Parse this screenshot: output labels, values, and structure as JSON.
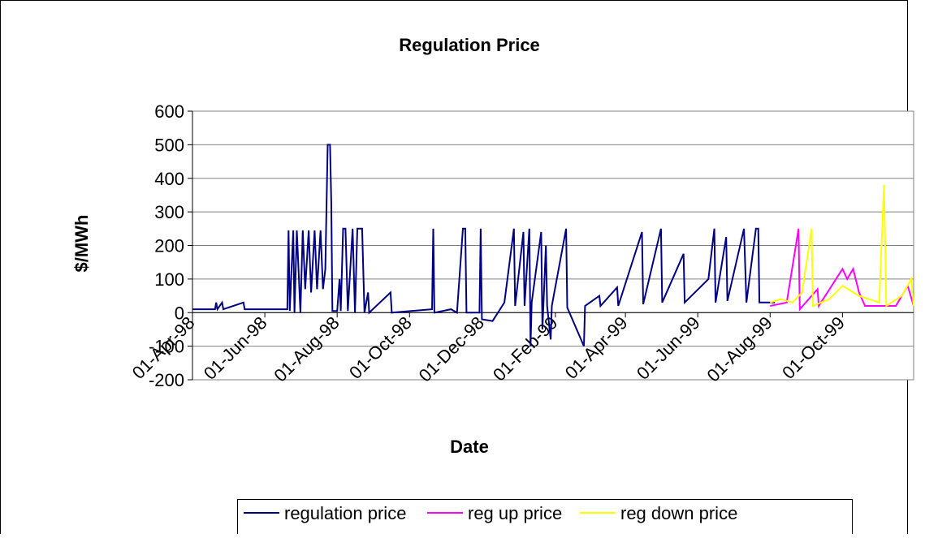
{
  "chart_data": {
    "type": "line",
    "title": "Regulation Price",
    "x_label": "Date",
    "y_label": "$/MWh",
    "xlim": [
      "1998-04-01",
      "1999-11-30"
    ],
    "xticks": [
      {
        "value": "1998-04-01",
        "label": "01-Apr-98"
      },
      {
        "value": "1998-06-01",
        "label": "01-Jun-98"
      },
      {
        "value": "1998-08-01",
        "label": "01-Aug-98"
      },
      {
        "value": "1998-10-01",
        "label": "01-Oct-98"
      },
      {
        "value": "1998-12-01",
        "label": "01-Dec-98"
      },
      {
        "value": "1999-02-01",
        "label": "01-Feb-99"
      },
      {
        "value": "1999-04-01",
        "label": "01-Apr-99"
      },
      {
        "value": "1999-06-01",
        "label": "01-Jun-99"
      },
      {
        "value": "1999-08-01",
        "label": "01-Aug-99"
      },
      {
        "value": "1999-10-01",
        "label": "01-Oct-99"
      }
    ],
    "ylim": [
      -200,
      600
    ],
    "yticks": [
      -200,
      -100,
      0,
      100,
      200,
      300,
      400,
      500,
      600
    ],
    "grid": true,
    "legend": "bottom",
    "series": [
      {
        "name": "regulation price",
        "color": "#000080",
        "x": [
          "1998-04-01",
          "1998-04-20",
          "1998-04-21",
          "1998-04-22",
          "1998-04-26",
          "1998-04-27",
          "1998-05-14",
          "1998-05-15",
          "1998-06-20",
          "1998-06-21",
          "1998-06-22",
          "1998-06-25",
          "1998-06-26",
          "1998-06-28",
          "1998-07-01",
          "1998-07-03",
          "1998-07-05",
          "1998-07-08",
          "1998-07-10",
          "1998-07-13",
          "1998-07-15",
          "1998-07-18",
          "1998-07-20",
          "1998-07-22",
          "1998-07-24",
          "1998-07-26",
          "1998-07-27",
          "1998-07-28",
          "1998-08-01",
          "1998-08-03",
          "1998-08-04",
          "1998-08-06",
          "1998-08-08",
          "1998-08-10",
          "1998-08-14",
          "1998-08-16",
          "1998-08-18",
          "1998-08-22",
          "1998-08-24",
          "1998-08-27",
          "1998-08-28",
          "1998-09-15",
          "1998-09-16",
          "1998-10-20",
          "1998-10-21",
          "1998-10-22",
          "1998-11-05",
          "1998-11-10",
          "1998-11-15",
          "1998-11-17",
          "1998-11-18",
          "1998-11-29",
          "1998-11-30",
          "1998-12-01",
          "1998-12-10",
          "1998-12-20",
          "1998-12-28",
          "1998-12-29",
          "1999-01-05",
          "1999-01-06",
          "1999-01-10",
          "1999-01-11",
          "1999-01-12",
          "1999-01-20",
          "1999-01-21",
          "1999-01-24",
          "1999-01-25",
          "1999-01-28",
          "1999-01-29",
          "1999-02-10",
          "1999-02-11",
          "1999-02-25",
          "1999-02-26",
          "1999-03-10",
          "1999-03-11",
          "1999-03-25",
          "1999-03-26",
          "1999-04-15",
          "1999-04-16",
          "1999-05-01",
          "1999-05-02",
          "1999-05-20",
          "1999-05-21",
          "1999-06-10",
          "1999-06-15",
          "1999-06-16",
          "1999-06-25",
          "1999-06-26",
          "1999-07-10",
          "1999-07-12",
          "1999-07-20",
          "1999-07-22",
          "1999-07-23",
          "1999-08-05"
        ],
        "values": [
          10,
          10,
          30,
          10,
          30,
          10,
          30,
          10,
          10,
          245,
          5,
          245,
          0,
          245,
          0,
          245,
          70,
          245,
          60,
          245,
          70,
          245,
          70,
          130,
          500,
          500,
          330,
          5,
          5,
          100,
          5,
          250,
          250,
          5,
          250,
          0,
          250,
          250,
          0,
          60,
          0,
          60,
          0,
          10,
          250,
          0,
          10,
          0,
          250,
          250,
          0,
          0,
          250,
          -20,
          -25,
          30,
          250,
          20,
          240,
          20,
          250,
          -100,
          30,
          240,
          -50,
          200,
          20,
          -80,
          20,
          250,
          15,
          -100,
          20,
          50,
          20,
          75,
          20,
          240,
          25,
          250,
          30,
          175,
          30,
          100,
          250,
          30,
          225,
          35,
          250,
          30,
          250,
          250,
          30,
          30
        ]
      },
      {
        "name": "reg up price",
        "color": "#ff00ff",
        "x": [
          "1999-08-01",
          "1999-08-15",
          "1999-08-25",
          "1999-08-26",
          "1999-09-10",
          "1999-09-11",
          "1999-10-01",
          "1999-10-05",
          "1999-10-10",
          "1999-10-15",
          "1999-10-20",
          "1999-11-15",
          "1999-11-25",
          "1999-11-30"
        ],
        "values": [
          20,
          30,
          250,
          10,
          70,
          20,
          130,
          100,
          130,
          60,
          20,
          20,
          80,
          20
        ]
      },
      {
        "name": "reg down price",
        "color": "#ffff00",
        "x": [
          "1999-08-01",
          "1999-08-10",
          "1999-08-20",
          "1999-08-28",
          "1999-09-05",
          "1999-09-06",
          "1999-09-20",
          "1999-10-01",
          "1999-10-15",
          "1999-11-01",
          "1999-11-05",
          "1999-11-07",
          "1999-11-20",
          "1999-11-28",
          "1999-11-30"
        ],
        "values": [
          30,
          40,
          30,
          60,
          250,
          20,
          40,
          80,
          50,
          30,
          380,
          20,
          50,
          100,
          20
        ]
      }
    ]
  }
}
